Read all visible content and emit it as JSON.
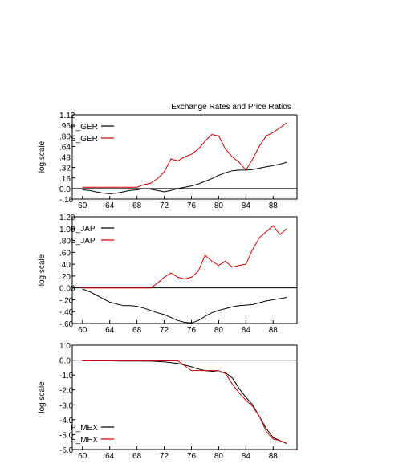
{
  "chart_data": {
    "type": "line",
    "title": "Exchange Rates and Price Ratios",
    "x_ticks": [
      "60",
      "64",
      "68",
      "72",
      "76",
      "80",
      "84",
      "88"
    ],
    "colors": {
      "P": "#000000",
      "S": "#cc0000"
    },
    "panels": [
      {
        "ylabel": "log scale",
        "ylim": [
          -0.16,
          1.12
        ],
        "y_ticks": [
          "1.12",
          ".96",
          ".80",
          ".64",
          ".48",
          ".32",
          ".16",
          "0.0",
          "-.16"
        ],
        "y_tick_values": [
          1.12,
          0.96,
          0.8,
          0.64,
          0.48,
          0.32,
          0.16,
          0.0,
          -0.16
        ],
        "zero_line": 0.0,
        "series": [
          {
            "name": "P_GER",
            "color": "#000000",
            "x": [
              1960,
              1961,
              1962,
              1963,
              1964,
              1965,
              1966,
              1967,
              1968,
              1969,
              1970,
              1971,
              1972,
              1973,
              1974,
              1975,
              1976,
              1977,
              1978,
              1979,
              1980,
              1981,
              1982,
              1983,
              1984,
              1985,
              1986,
              1987,
              1988,
              1989,
              1990
            ],
            "values": [
              -0.02,
              -0.03,
              -0.05,
              -0.07,
              -0.08,
              -0.07,
              -0.05,
              -0.03,
              -0.02,
              0.0,
              -0.01,
              -0.03,
              -0.05,
              -0.03,
              0.0,
              0.02,
              0.04,
              0.07,
              0.11,
              0.15,
              0.2,
              0.24,
              0.27,
              0.28,
              0.28,
              0.29,
              0.31,
              0.33,
              0.35,
              0.37,
              0.4
            ]
          },
          {
            "name": "S_GER",
            "color": "#cc0000",
            "x": [
              1960,
              1961,
              1962,
              1963,
              1964,
              1965,
              1966,
              1967,
              1968,
              1969,
              1970,
              1971,
              1972,
              1973,
              1974,
              1975,
              1976,
              1977,
              1978,
              1979,
              1980,
              1981,
              1982,
              1983,
              1984,
              1985,
              1986,
              1987,
              1988,
              1989,
              1990
            ],
            "values": [
              0.02,
              0.02,
              0.02,
              0.02,
              0.02,
              0.02,
              0.02,
              0.02,
              0.02,
              0.06,
              0.08,
              0.15,
              0.25,
              0.45,
              0.42,
              0.48,
              0.52,
              0.6,
              0.72,
              0.82,
              0.8,
              0.6,
              0.48,
              0.4,
              0.28,
              0.45,
              0.65,
              0.8,
              0.85,
              0.92,
              1.0
            ]
          }
        ]
      },
      {
        "ylabel": "log scale",
        "ylim": [
          -0.6,
          1.2
        ],
        "y_ticks": [
          "1.20",
          "1.00",
          ".80",
          ".60",
          ".40",
          ".20",
          "0.00",
          "-.20",
          "-.40",
          "-.60"
        ],
        "y_tick_values": [
          1.2,
          1.0,
          0.8,
          0.6,
          0.4,
          0.2,
          0.0,
          -0.2,
          -0.4,
          -0.6
        ],
        "zero_line": 0.0,
        "series": [
          {
            "name": "P_JAP",
            "color": "#000000",
            "x": [
              1960,
              1961,
              1962,
              1963,
              1964,
              1965,
              1966,
              1967,
              1968,
              1969,
              1970,
              1971,
              1972,
              1973,
              1974,
              1975,
              1976,
              1977,
              1978,
              1979,
              1980,
              1981,
              1982,
              1983,
              1984,
              1985,
              1986,
              1987,
              1988,
              1989,
              1990
            ],
            "values": [
              -0.02,
              -0.06,
              -0.12,
              -0.18,
              -0.24,
              -0.27,
              -0.3,
              -0.3,
              -0.31,
              -0.34,
              -0.38,
              -0.42,
              -0.45,
              -0.5,
              -0.55,
              -0.58,
              -0.59,
              -0.55,
              -0.48,
              -0.42,
              -0.38,
              -0.35,
              -0.32,
              -0.3,
              -0.29,
              -0.28,
              -0.25,
              -0.22,
              -0.2,
              -0.18,
              -0.16
            ]
          },
          {
            "name": "S_JAP",
            "color": "#cc0000",
            "x": [
              1960,
              1961,
              1962,
              1963,
              1964,
              1965,
              1966,
              1967,
              1968,
              1969,
              1970,
              1971,
              1972,
              1973,
              1974,
              1975,
              1976,
              1977,
              1978,
              1979,
              1980,
              1981,
              1982,
              1983,
              1984,
              1985,
              1986,
              1987,
              1988,
              1989,
              1990
            ],
            "values": [
              0.0,
              0.0,
              0.0,
              0.0,
              0.0,
              0.0,
              0.0,
              0.0,
              0.0,
              0.0,
              0.0,
              0.08,
              0.18,
              0.25,
              0.18,
              0.15,
              0.18,
              0.28,
              0.55,
              0.45,
              0.38,
              0.45,
              0.35,
              0.38,
              0.4,
              0.65,
              0.85,
              0.95,
              1.05,
              0.9,
              1.0
            ]
          }
        ]
      },
      {
        "ylabel": "log scale",
        "ylim": [
          -6.0,
          1.0
        ],
        "y_ticks": [
          "1.0",
          "0.0",
          "-1.0",
          "-2.0",
          "-3.0",
          "-4.0",
          "-5.0",
          "-6.0"
        ],
        "y_tick_values": [
          1.0,
          0.0,
          -1.0,
          -2.0,
          -3.0,
          -4.0,
          -5.0,
          -6.0
        ],
        "zero_line": 0.0,
        "series": [
          {
            "name": "P_MEX",
            "color": "#000000",
            "x": [
              1960,
              1962,
              1964,
              1966,
              1968,
              1970,
              1972,
              1974,
              1976,
              1977,
              1978,
              1979,
              1980,
              1981,
              1982,
              1983,
              1984,
              1985,
              1986,
              1987,
              1988,
              1989,
              1990
            ],
            "values": [
              -0.05,
              -0.05,
              -0.05,
              -0.06,
              -0.06,
              -0.07,
              -0.12,
              -0.22,
              -0.45,
              -0.6,
              -0.7,
              -0.75,
              -0.8,
              -0.85,
              -1.2,
              -1.9,
              -2.5,
              -3.0,
              -3.8,
              -4.6,
              -5.2,
              -5.4,
              -5.6
            ]
          },
          {
            "name": "S_MEX",
            "color": "#cc0000",
            "x": [
              1960,
              1962,
              1964,
              1966,
              1968,
              1970,
              1972,
              1974,
              1976,
              1977,
              1978,
              1979,
              1980,
              1981,
              1982,
              1983,
              1984,
              1985,
              1986,
              1987,
              1988,
              1989,
              1990
            ],
            "values": [
              -0.05,
              -0.05,
              -0.05,
              -0.05,
              -0.05,
              -0.05,
              -0.05,
              -0.05,
              -0.7,
              -0.7,
              -0.7,
              -0.7,
              -0.7,
              -0.9,
              -1.6,
              -2.2,
              -2.7,
              -3.1,
              -3.8,
              -4.8,
              -5.3,
              -5.4,
              -5.6
            ]
          }
        ]
      }
    ]
  }
}
